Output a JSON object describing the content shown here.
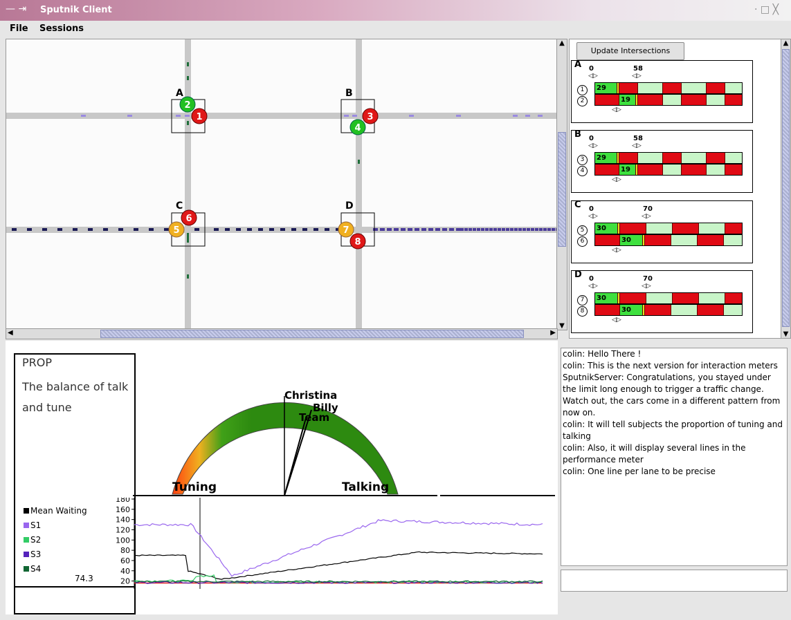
{
  "window": {
    "title": "Sputnik Client",
    "left_controls": "— ⇥",
    "right_controls": "· □ ╳"
  },
  "menu": {
    "file": "File",
    "sessions": "Sessions"
  },
  "map": {
    "intersections": [
      {
        "name": "A",
        "cars": [
          {
            "num": "2",
            "color": "#22c022"
          },
          {
            "num": "1",
            "color": "#e01818"
          }
        ]
      },
      {
        "name": "B",
        "cars": [
          {
            "num": "3",
            "color": "#e01818"
          },
          {
            "num": "4",
            "color": "#22c022"
          }
        ]
      },
      {
        "name": "C",
        "cars": [
          {
            "num": "6",
            "color": "#e01818"
          },
          {
            "num": "5",
            "color": "#f0b020"
          }
        ]
      },
      {
        "name": "D",
        "cars": [
          {
            "num": "7",
            "color": "#f0b020"
          },
          {
            "num": "8",
            "color": "#e01818"
          }
        ]
      }
    ]
  },
  "side": {
    "update_button": "Update Intersections",
    "schedules": [
      {
        "name": "A",
        "tick0": "0",
        "tick1": "58",
        "lanes": [
          {
            "num": "1",
            "value": "29"
          },
          {
            "num": "2",
            "value": "19"
          }
        ]
      },
      {
        "name": "B",
        "tick0": "0",
        "tick1": "58",
        "lanes": [
          {
            "num": "3",
            "value": "29"
          },
          {
            "num": "4",
            "value": "19"
          }
        ]
      },
      {
        "name": "C",
        "tick0": "0",
        "tick1": "70",
        "lanes": [
          {
            "num": "5",
            "value": "30"
          },
          {
            "num": "6",
            "value": "30"
          }
        ]
      },
      {
        "name": "D",
        "tick0": "0",
        "tick1": "70",
        "lanes": [
          {
            "num": "7",
            "value": "30"
          },
          {
            "num": "8",
            "value": "30"
          }
        ]
      }
    ]
  },
  "meter": {
    "prop_title": "PROP",
    "prop_desc": "The balance of talk and tune",
    "left_label": "Tuning",
    "right_label": "Talking",
    "needles": [
      "Christina",
      "Billy",
      "Team"
    ]
  },
  "chart_data": {
    "type": "line",
    "ylim": [
      10,
      180
    ],
    "yticks": [
      "180",
      "160",
      "140",
      "120",
      "100",
      "80",
      "60",
      "40",
      "20"
    ],
    "series": [
      {
        "name": "Mean Waiting",
        "color": "#000000"
      },
      {
        "name": "S1",
        "color": "#9966ee"
      },
      {
        "name": "S2",
        "color": "#33cc66"
      },
      {
        "name": "S3",
        "color": "#5522bb"
      },
      {
        "name": "S4",
        "color": "#116633"
      }
    ],
    "current_value": "74.3"
  },
  "chat": {
    "messages": [
      "colin: Hello There !",
      "colin: This is the next version for interaction meters",
      "SputnikServer: Congratulations, you stayed under the limit long enough to trigger a traffic change.",
      "Watch out, the cars come in a different pattern from now on.",
      "colin: It will tell subjects the proportion of tuning and talking",
      "colin: Also, it will display several lines in the performance meter",
      "colin: One line per lane to be precise"
    ]
  }
}
